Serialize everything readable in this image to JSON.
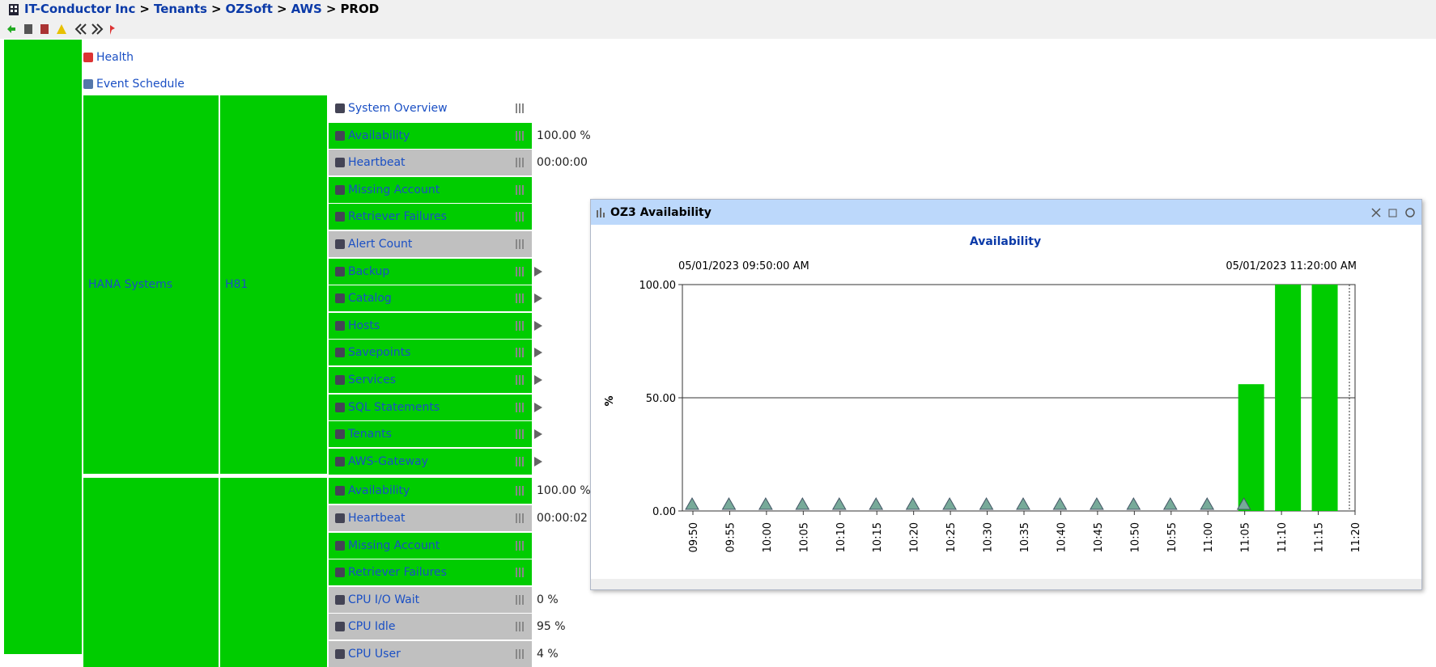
{
  "breadcrumb": [
    "IT-Conductor Inc",
    "Tenants",
    "OZSoft",
    "AWS",
    "PROD"
  ],
  "breadcrumb_separator": ">",
  "nav": [
    "Health",
    "Event Schedule"
  ],
  "groups": [
    {
      "label": "HANA Systems",
      "system": "H81",
      "rows": [
        {
          "label": "System Overview",
          "color": "#ffffff"
        },
        {
          "label": "Availability",
          "color": "#00cc00",
          "value": "100.00 %"
        },
        {
          "label": "Heartbeat",
          "color": "#c0c0c0",
          "value": "00:00:00"
        },
        {
          "label": "Missing Account",
          "color": "#00cc00"
        },
        {
          "label": "Retriever Failures",
          "color": "#00cc00"
        },
        {
          "label": "Alert Count",
          "color": "#c0c0c0"
        },
        {
          "label": "Backup",
          "color": "#00cc00",
          "expandable": true
        },
        {
          "label": "Catalog",
          "color": "#00cc00",
          "expandable": true
        },
        {
          "label": "Hosts",
          "color": "#00cc00",
          "expandable": true
        },
        {
          "label": "Savepoints",
          "color": "#00cc00",
          "expandable": true
        },
        {
          "label": "Services",
          "color": "#00cc00",
          "expandable": true
        },
        {
          "label": "SQL Statements",
          "color": "#00cc00",
          "expandable": true
        },
        {
          "label": "Tenants",
          "color": "#00cc00",
          "expandable": true
        },
        {
          "label": "AWS-Gateway",
          "color": "#00cc00",
          "expandable": true
        }
      ]
    },
    {
      "rows": [
        {
          "label": "Availability",
          "color": "#00cc00",
          "value": "100.00 %"
        },
        {
          "label": "Heartbeat",
          "color": "#c0c0c0",
          "value": "00:00:02"
        },
        {
          "label": "Missing Account",
          "color": "#00cc00"
        },
        {
          "label": "Retriever Failures",
          "color": "#00cc00"
        },
        {
          "label": "CPU I/O Wait",
          "color": "#c0c0c0",
          "value": "0 %"
        },
        {
          "label": "CPU Idle",
          "color": "#c0c0c0",
          "value": "95 %"
        },
        {
          "label": "CPU User",
          "color": "#c0c0c0",
          "value": "4 %"
        }
      ]
    }
  ],
  "window": {
    "title": "OZ3 Availability",
    "chart_data": {
      "type": "bar",
      "title": "Availability",
      "start_label": "05/01/2023 09:50:00 AM",
      "end_label": "05/01/2023 11:20:00 AM",
      "y_label": "%",
      "color": "#00cc00",
      "categories": [
        "09:50",
        "09:55",
        "10:00",
        "10:05",
        "10:10",
        "10:15",
        "10:20",
        "10:25",
        "10:30",
        "10:35",
        "10:40",
        "10:45",
        "10:50",
        "10:55",
        "11:00",
        "11:05",
        "11:10",
        "11:15",
        "11:20"
      ],
      "values": [
        0,
        0,
        0,
        0,
        0,
        0,
        0,
        0,
        0,
        0,
        0,
        0,
        0,
        0,
        0,
        56,
        100,
        100,
        null
      ],
      "ylim": [
        0,
        100
      ],
      "yticks": [
        {
          "value": 0,
          "label": "0.00"
        },
        {
          "value": 50,
          "label": "50.00"
        },
        {
          "value": 100,
          "label": "100.00"
        }
      ],
      "grid": true
    }
  }
}
